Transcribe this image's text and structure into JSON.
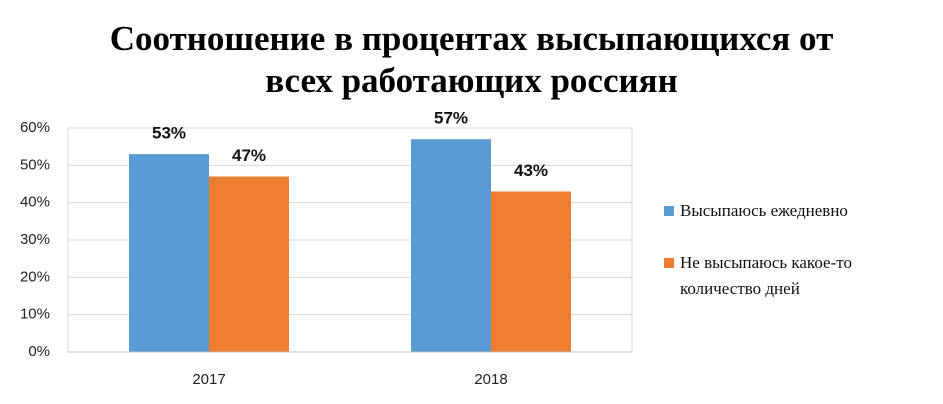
{
  "chart_data": {
    "type": "bar",
    "title": "Соотношение в процентах высыпающихся от всех работающих россиян",
    "categories": [
      "2017",
      "2018"
    ],
    "series": [
      {
        "name": "Высыпаюсь ежедневно",
        "color": "#5b9bd5",
        "values": [
          53,
          57
        ],
        "value_labels": [
          "53%",
          "57%"
        ]
      },
      {
        "name": "Не высыпаюсь какое-то количество дней",
        "color": "#ed7d31",
        "values": [
          47,
          43
        ],
        "value_labels": [
          "47%",
          "43%"
        ]
      }
    ],
    "ylim": [
      0,
      60
    ],
    "yticks": [
      {
        "value": 0,
        "label": "0%"
      },
      {
        "value": 10,
        "label": "10%"
      },
      {
        "value": 20,
        "label": "20%"
      },
      {
        "value": 30,
        "label": "30%"
      },
      {
        "value": 40,
        "label": "40%"
      },
      {
        "value": 50,
        "label": "50%"
      },
      {
        "value": 60,
        "label": "60%"
      }
    ],
    "grid": true,
    "legend": "right"
  }
}
